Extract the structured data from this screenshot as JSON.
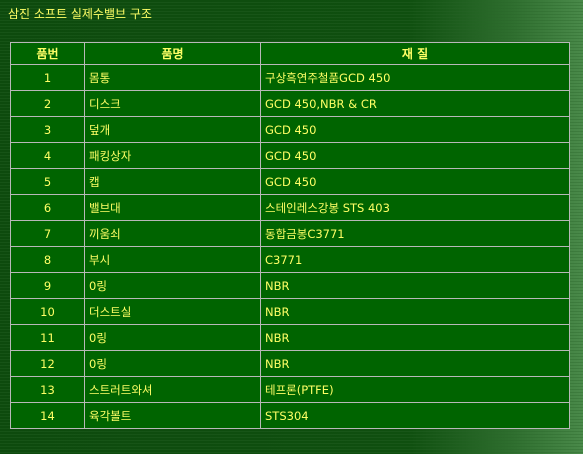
{
  "title": "삼진 소프트 실제수밸브 구조",
  "columns": {
    "no": "품번",
    "name": "품명",
    "material": "재  질"
  },
  "rows": [
    {
      "no": "1",
      "name": "몸통",
      "material": "구상흑연주철품GCD 450"
    },
    {
      "no": "2",
      "name": "디스크",
      "material": "GCD 450,NBR & CR"
    },
    {
      "no": "3",
      "name": "덮개",
      "material": "GCD 450"
    },
    {
      "no": "4",
      "name": "패킹상자",
      "material": "GCD 450"
    },
    {
      "no": "5",
      "name": "캡",
      "material": "GCD 450"
    },
    {
      "no": "6",
      "name": "밸브대",
      "material": "스테인레스강봉 STS 403"
    },
    {
      "no": "7",
      "name": "끼움쇠",
      "material": "동합금봉C3771"
    },
    {
      "no": "8",
      "name": "부시",
      "material": "C3771"
    },
    {
      "no": "9",
      "name": "0링",
      "material": "NBR"
    },
    {
      "no": "10",
      "name": "더스트실",
      "material": "NBR"
    },
    {
      "no": "11",
      "name": "0링",
      "material": "NBR"
    },
    {
      "no": "12",
      "name": "0링",
      "material": "NBR"
    },
    {
      "no": "13",
      "name": "스트러트와셔",
      "material": "테프론(PTFE)"
    },
    {
      "no": "14",
      "name": "육각볼트",
      "material": "STS304"
    }
  ],
  "colors": {
    "text": "#ffff66",
    "cell_background": "#006400",
    "page_background": "#0f4d0f",
    "border": "#b8b8b8"
  }
}
